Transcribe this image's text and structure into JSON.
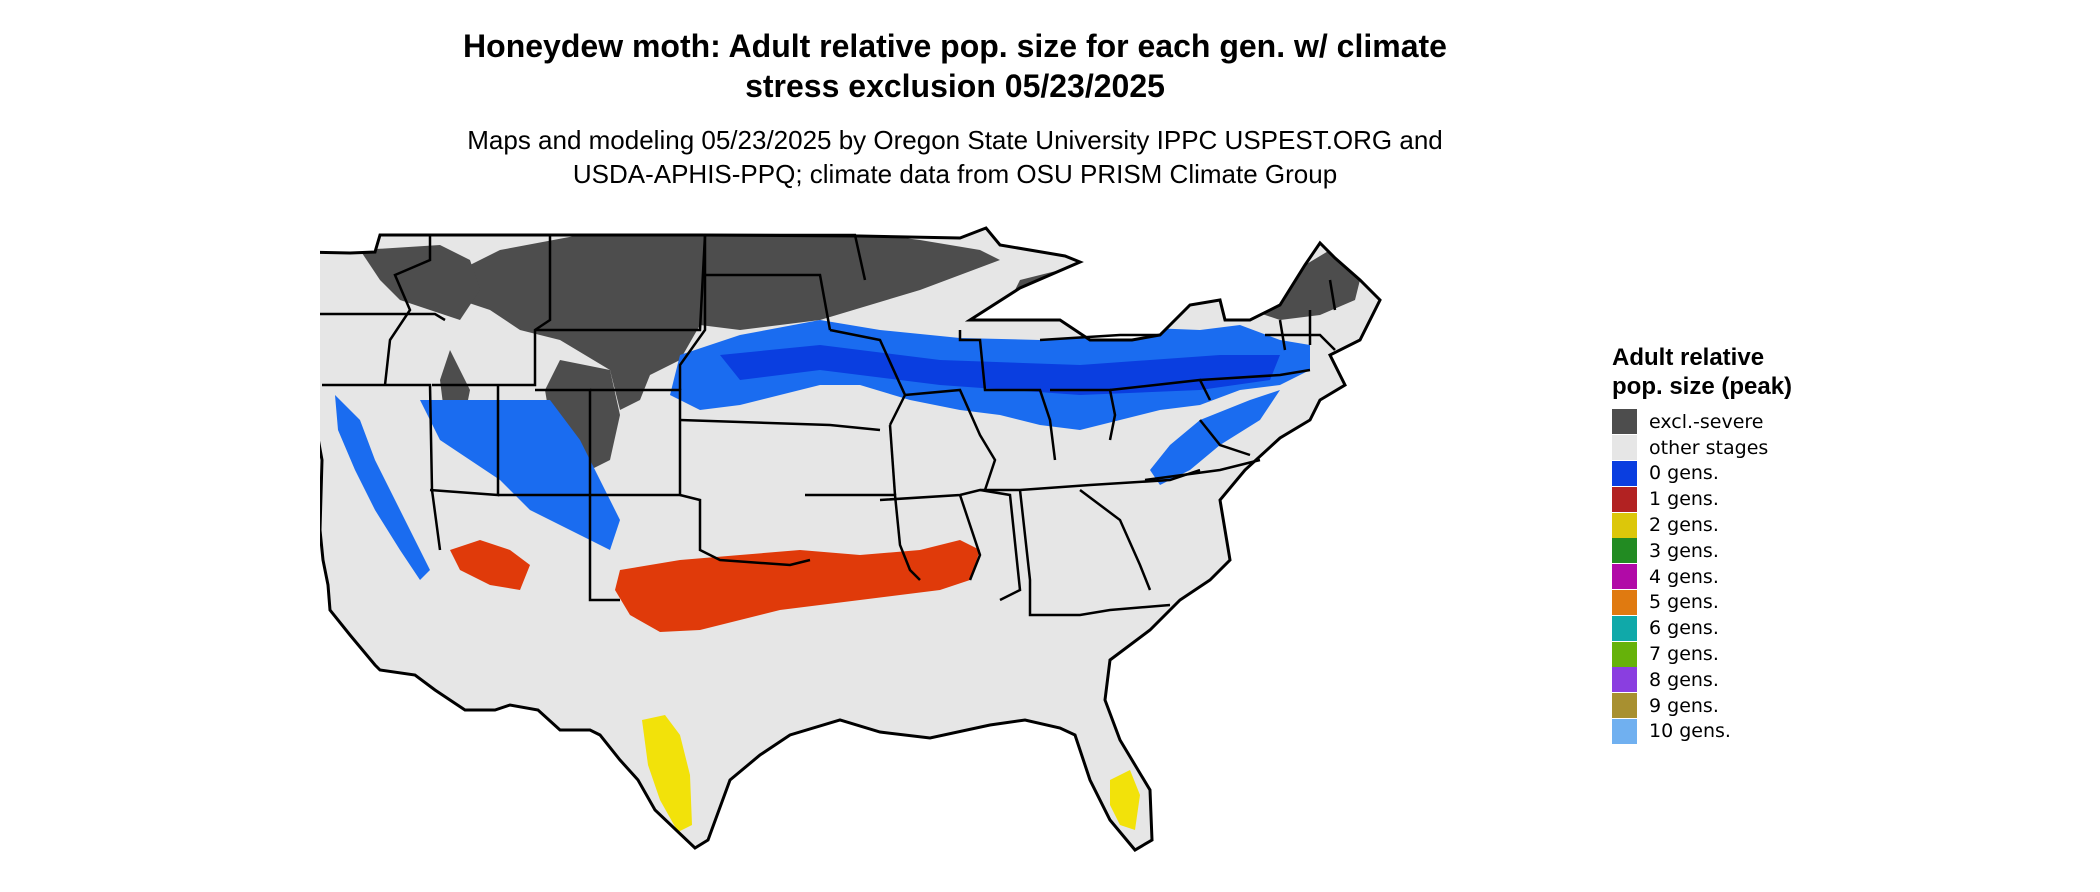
{
  "title_line1": "Honeydew moth: Adult relative pop. size for each gen. w/ climate",
  "title_line2": "stress exclusion 05/23/2025",
  "subtitle_line1": "Maps and modeling 05/23/2025 by Oregon State University IPPC USPEST.ORG and",
  "subtitle_line2": "USDA-APHIS-PPQ; climate data from OSU PRISM Climate Group",
  "map": {
    "region": "Contiguous United States",
    "background_color": "#e6e6e6",
    "border_color": "#000000"
  },
  "legend": {
    "title": "Adult relative pop. size (peak)",
    "items": [
      {
        "label": "excl.-severe",
        "color": "#4d4d4d"
      },
      {
        "label": "other stages",
        "color": "#e6e6e6"
      },
      {
        "label": "0 gens.",
        "color": "#0a3ee0"
      },
      {
        "label": "1 gens.",
        "color": "#b22222"
      },
      {
        "label": "2 gens.",
        "color": "#dcc70a"
      },
      {
        "label": "3 gens.",
        "color": "#228b22"
      },
      {
        "label": "4 gens.",
        "color": "#b10aa7"
      },
      {
        "label": "5 gens.",
        "color": "#e07a10"
      },
      {
        "label": "6 gens.",
        "color": "#10a9a9"
      },
      {
        "label": "7 gens.",
        "color": "#66b20a"
      },
      {
        "label": "8 gens.",
        "color": "#8a3ee0"
      },
      {
        "label": "9 gens.",
        "color": "#a89030"
      },
      {
        "label": "10 gens.",
        "color": "#70b0f0"
      }
    ]
  }
}
